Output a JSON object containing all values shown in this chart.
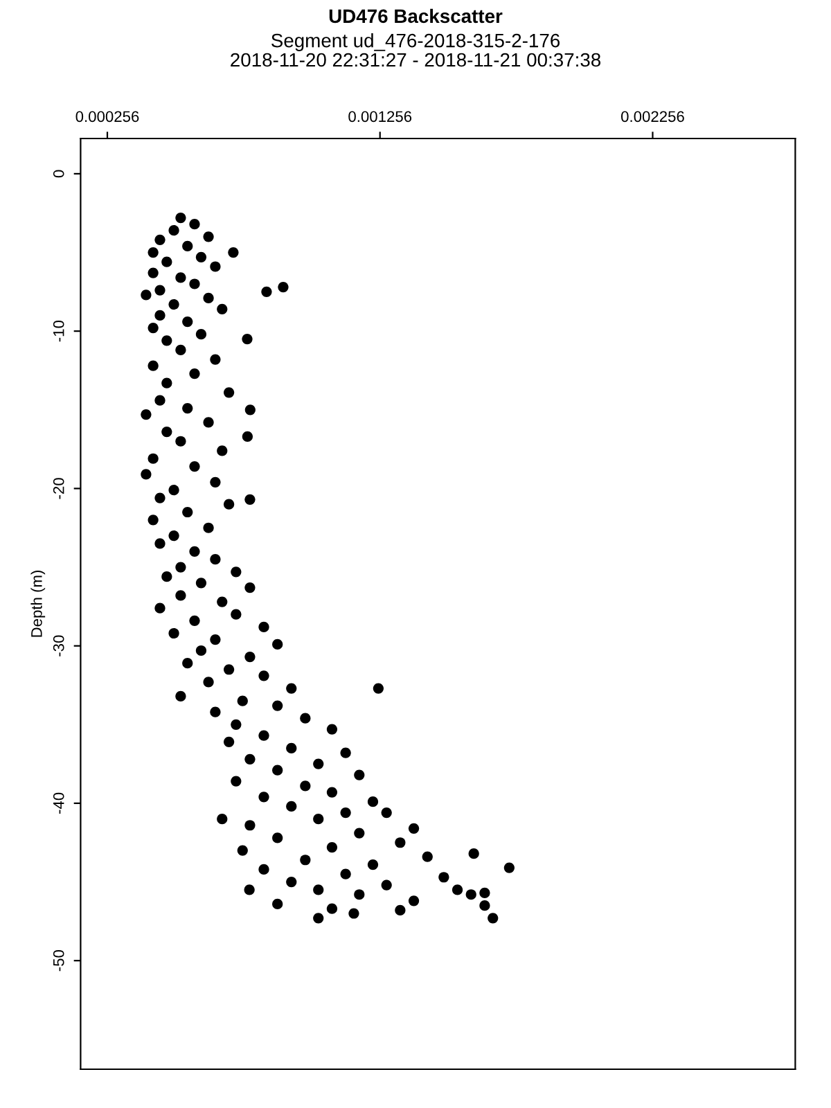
{
  "chart_data": {
    "type": "scatter",
    "title": "UD476 Backscatter",
    "subtitle": "Segment ud_476-2018-315-2-176\n2018-11-20 22:31:27 - 2018-11-21 00:37:38",
    "ylabel": "Depth (m)",
    "xlim": [
      0.000158,
      0.002779
    ],
    "ylim": [
      -56.9,
      2.24
    ],
    "xticks": [
      0.000256,
      0.001256,
      0.002256
    ],
    "yticks": [
      0,
      -10,
      -20,
      -30,
      -40,
      -50
    ],
    "grid": false,
    "legend": false,
    "marker": "circle",
    "series": [
      {
        "color": "#000000",
        "x": [
          0.000525,
          0.000576,
          0.0005,
          0.000627,
          0.000449,
          0.00055,
          0.000424,
          0.0006,
          0.000474,
          0.000652,
          0.000424,
          0.000525,
          0.000576,
          0.000449,
          0.000627,
          0.0005,
          0.000677,
          0.000449,
          0.00055,
          0.000424,
          0.0006,
          0.000474,
          0.000525,
          0.000652,
          0.000424,
          0.000576,
          0.000474,
          0.000702,
          0.000449,
          0.00055,
          0.000398,
          0.000627,
          0.000474,
          0.000525,
          0.000677,
          0.000424,
          0.000576,
          0.000398,
          0.000652,
          0.0005,
          0.000449,
          0.000702,
          0.00055,
          0.000424,
          0.000627,
          0.0005,
          0.000449,
          0.000576,
          0.000652,
          0.000525,
          0.000901,
          0.00084,
          0.000718,
          0.000398,
          0.000769,
          0.00078,
          0.00077,
          0.000779,
          0.000728,
          0.000474,
          0.0006,
          0.000779,
          0.000525,
          0.000677,
          0.000449,
          0.000728,
          0.000576,
          0.00083,
          0.0005,
          0.000652,
          0.00088,
          0.0006,
          0.000779,
          0.00055,
          0.000702,
          0.00083,
          0.000627,
          0.000931,
          0.000525,
          0.000752,
          0.00125,
          0.00088,
          0.000652,
          0.000982,
          0.000728,
          0.00108,
          0.00083,
          0.000702,
          0.000931,
          0.00113,
          0.000779,
          0.00103,
          0.00088,
          0.00118,
          0.000728,
          0.000982,
          0.00108,
          0.00083,
          0.00123,
          0.000931,
          0.000677,
          0.00113,
          0.00128,
          0.00103,
          0.000779,
          0.00138,
          0.00118,
          0.00088,
          0.00133,
          0.00108,
          0.000752,
          0.00143,
          0.000982,
          0.00123,
          0.00083,
          0.00113,
          0.00149,
          0.000931,
          0.00128,
          0.00103,
          0.000777,
          0.00118,
          0.00154,
          0.00138,
          0.00088,
          0.00108,
          0.00133,
          0.00159,
          0.00103,
          0.00164,
          0.00116,
          0.00173,
          0.00167,
          0.0016,
          0.00164
        ],
        "values": [
          -2.8,
          -3.2,
          -3.6,
          -4.0,
          -4.2,
          -4.6,
          -5.0,
          -5.3,
          -5.6,
          -5.9,
          -6.3,
          -6.6,
          -7.0,
          -7.4,
          -7.9,
          -8.3,
          -8.6,
          -9.0,
          -9.4,
          -9.8,
          -10.2,
          -10.6,
          -11.2,
          -11.8,
          -12.2,
          -12.7,
          -13.3,
          -13.9,
          -14.4,
          -14.9,
          -15.3,
          -15.8,
          -16.4,
          -17.0,
          -17.6,
          -18.1,
          -18.6,
          -19.1,
          -19.6,
          -20.1,
          -20.6,
          -21.0,
          -21.5,
          -22.0,
          -22.5,
          -23.0,
          -23.5,
          -24.0,
          -24.5,
          -25.0,
          -7.2,
          -7.5,
          -5.0,
          -7.7,
          -10.5,
          -15.0,
          -16.7,
          -20.7,
          -25.3,
          -25.6,
          -26.0,
          -26.3,
          -26.8,
          -27.2,
          -27.6,
          -28.0,
          -28.4,
          -28.8,
          -29.2,
          -29.6,
          -29.9,
          -30.3,
          -30.7,
          -31.1,
          -31.5,
          -31.9,
          -32.3,
          -32.7,
          -33.2,
          -33.5,
          -32.7,
          -33.8,
          -34.2,
          -34.6,
          -35.0,
          -35.3,
          -35.7,
          -36.1,
          -36.5,
          -36.8,
          -37.2,
          -37.5,
          -37.9,
          -38.2,
          -38.6,
          -38.9,
          -39.3,
          -39.6,
          -39.9,
          -40.2,
          -41.0,
          -40.6,
          -40.6,
          -41.0,
          -41.4,
          -41.6,
          -41.9,
          -42.2,
          -42.5,
          -42.8,
          -43.0,
          -43.4,
          -43.6,
          -43.9,
          -44.2,
          -44.5,
          -44.7,
          -45.0,
          -45.2,
          -45.5,
          -45.5,
          -45.8,
          -45.5,
          -46.2,
          -46.4,
          -46.7,
          -46.8,
          -45.8,
          -47.3,
          -46.5,
          -47.0,
          -44.1,
          -47.3,
          -43.2,
          -45.7
        ]
      }
    ]
  }
}
